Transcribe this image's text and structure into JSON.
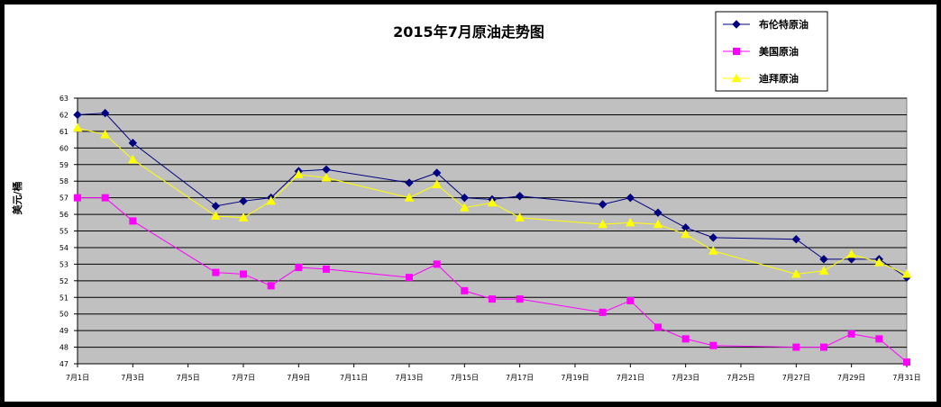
{
  "chart_data": {
    "type": "line",
    "title": "2015年7月原油走势图",
    "ylabel": "美元/桶",
    "xlabel": "",
    "ylim": [
      47,
      63
    ],
    "yticks": [
      47,
      48,
      49,
      50,
      51,
      52,
      53,
      54,
      55,
      56,
      57,
      58,
      59,
      60,
      61,
      62,
      63
    ],
    "x_range": [
      1,
      31
    ],
    "x_ticks": [
      {
        "day": 1,
        "label": "7月1日"
      },
      {
        "day": 3,
        "label": "7月3日"
      },
      {
        "day": 5,
        "label": "7月5日"
      },
      {
        "day": 7,
        "label": "7月7日"
      },
      {
        "day": 9,
        "label": "7月9日"
      },
      {
        "day": 11,
        "label": "7月11日"
      },
      {
        "day": 13,
        "label": "7月13日"
      },
      {
        "day": 15,
        "label": "7月15日"
      },
      {
        "day": 17,
        "label": "7月17日"
      },
      {
        "day": 19,
        "label": "7月19日"
      },
      {
        "day": 21,
        "label": "7月21日"
      },
      {
        "day": 23,
        "label": "7月23日"
      },
      {
        "day": 25,
        "label": "7月25日"
      },
      {
        "day": 27,
        "label": "7月27日"
      },
      {
        "day": 29,
        "label": "7月29日"
      },
      {
        "day": 31,
        "label": "7月31日"
      }
    ],
    "grid": true,
    "legend_position": "top-right",
    "plot_background": "#c0c0c0",
    "series": [
      {
        "name": "布伦特原油",
        "color": "#000080",
        "marker": "diamond",
        "points": [
          [
            1,
            62.0
          ],
          [
            2,
            62.1
          ],
          [
            3,
            60.3
          ],
          [
            6,
            56.5
          ],
          [
            7,
            56.8
          ],
          [
            8,
            57.0
          ],
          [
            9,
            58.6
          ],
          [
            10,
            58.7
          ],
          [
            13,
            57.9
          ],
          [
            14,
            58.5
          ],
          [
            15,
            57.0
          ],
          [
            16,
            56.9
          ],
          [
            17,
            57.1
          ],
          [
            20,
            56.6
          ],
          [
            21,
            57.0
          ],
          [
            22,
            56.1
          ],
          [
            23,
            55.2
          ],
          [
            24,
            54.6
          ],
          [
            27,
            54.5
          ],
          [
            28,
            53.3
          ],
          [
            29,
            53.3
          ],
          [
            30,
            53.3
          ],
          [
            31,
            52.2
          ]
        ]
      },
      {
        "name": "美国原油",
        "color": "#ff00ff",
        "marker": "square",
        "points": [
          [
            1,
            57.0
          ],
          [
            2,
            57.0
          ],
          [
            3,
            55.6
          ],
          [
            6,
            52.5
          ],
          [
            7,
            52.4
          ],
          [
            8,
            51.7
          ],
          [
            9,
            52.8
          ],
          [
            10,
            52.7
          ],
          [
            13,
            52.2
          ],
          [
            14,
            53.0
          ],
          [
            15,
            51.4
          ],
          [
            16,
            50.9
          ],
          [
            17,
            50.9
          ],
          [
            20,
            50.1
          ],
          [
            21,
            50.8
          ],
          [
            22,
            49.2
          ],
          [
            23,
            48.5
          ],
          [
            24,
            48.1
          ],
          [
            27,
            48.0
          ],
          [
            28,
            48.0
          ],
          [
            29,
            48.8
          ],
          [
            30,
            48.5
          ],
          [
            31,
            47.1
          ]
        ]
      },
      {
        "name": "迪拜原油",
        "color": "#ffff00",
        "marker": "triangle",
        "points": [
          [
            1,
            61.2
          ],
          [
            2,
            60.8
          ],
          [
            3,
            59.3
          ],
          [
            6,
            55.9
          ],
          [
            7,
            55.8
          ],
          [
            8,
            56.8
          ],
          [
            9,
            58.4
          ],
          [
            10,
            58.2
          ],
          [
            13,
            57.0
          ],
          [
            14,
            57.8
          ],
          [
            15,
            56.4
          ],
          [
            16,
            56.7
          ],
          [
            17,
            55.8
          ],
          [
            20,
            55.4
          ],
          [
            21,
            55.5
          ],
          [
            22,
            55.4
          ],
          [
            23,
            54.8
          ],
          [
            24,
            53.8
          ],
          [
            27,
            52.4
          ],
          [
            28,
            52.6
          ],
          [
            29,
            53.6
          ],
          [
            30,
            53.1
          ],
          [
            31,
            52.4
          ]
        ]
      }
    ]
  }
}
